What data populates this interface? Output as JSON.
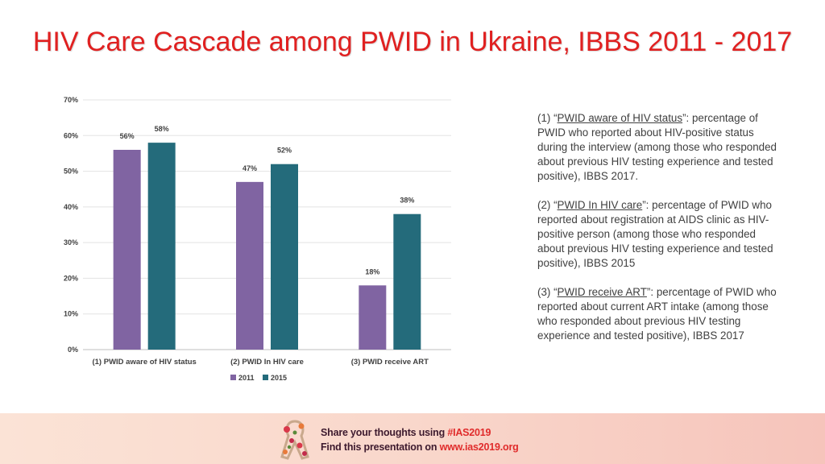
{
  "title": "HIV Care Cascade among PWID in Ukraine, IBBS 2011 - 2017",
  "chart_data": {
    "type": "bar",
    "categories": [
      "(1) PWID aware of HIV status",
      "(2) PWID In HIV care",
      "(3) PWID receive ART"
    ],
    "series": [
      {
        "name": "2011",
        "values": [
          56,
          47,
          18
        ],
        "labels": [
          "56%",
          "47%",
          "18%"
        ],
        "color": "#8064a2"
      },
      {
        "name": "2015",
        "values": [
          58,
          52,
          38
        ],
        "labels": [
          "58%",
          "52%",
          "38%"
        ],
        "color": "#246b7b"
      }
    ],
    "yticks": [
      {
        "value": 0,
        "label": "0%"
      },
      {
        "value": 10,
        "label": "10%"
      },
      {
        "value": 20,
        "label": "20%"
      },
      {
        "value": 30,
        "label": "30%"
      },
      {
        "value": 40,
        "label": "40%"
      },
      {
        "value": 50,
        "label": "50%"
      },
      {
        "value": 60,
        "label": "60%"
      },
      {
        "value": 70,
        "label": "70%"
      }
    ],
    "ylim": [
      0,
      70
    ],
    "grid": true,
    "legend_position": "bottom",
    "xlabel": "",
    "ylabel": ""
  },
  "notes": [
    {
      "num": "(1) “",
      "term": "PWID aware of HIV status",
      "desc": "”: percentage of PWID who reported about HIV-positive status during the interview (among those who responded about  previous HIV testing experience and tested positive), IBBS 2017."
    },
    {
      "num": "(2) “",
      "term": "PWID In HIV care",
      "desc": "”: percentage of PWID who reported about registration at AIDS clinic as HIV-positive person (among those who responded about  previous HIV testing experience and tested positive), IBBS 2015"
    },
    {
      "num": "(3) “",
      "term": "PWID receive ART",
      "desc": "”: percentage of PWID who reported about current ART intake (among those who responded about  previous HIV testing experience and tested positive), IBBS 2017"
    }
  ],
  "footer": {
    "line1_text": "Share your thoughts using ",
    "line1_accent": "#IAS2019",
    "line2_text": "Find this presentation on ",
    "line2_accent": "www.ias2019.org",
    "logo_icon": "ribbon-logo-icon"
  }
}
